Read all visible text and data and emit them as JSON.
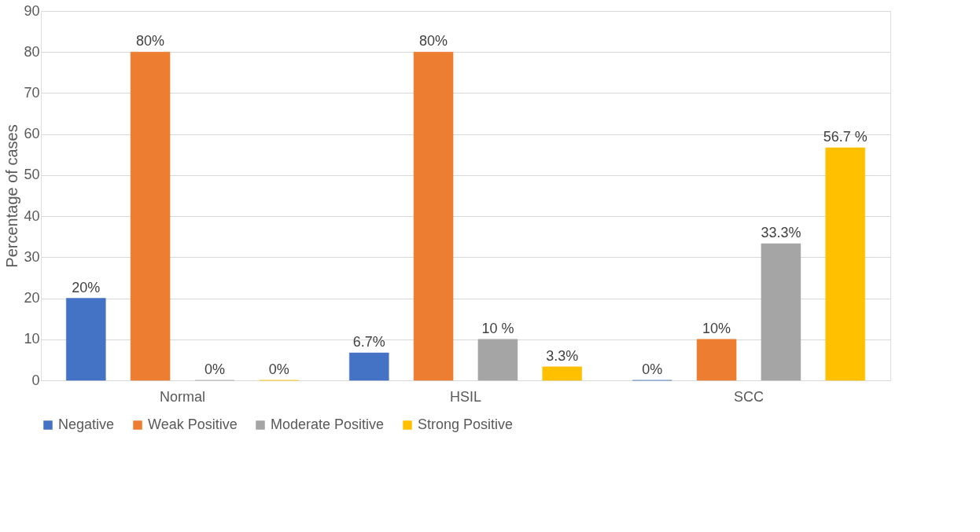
{
  "chart_data": {
    "type": "bar",
    "ylabel": "Percentage of cases",
    "categories": [
      "Normal",
      "HSIL",
      "SCC"
    ],
    "series": [
      {
        "name": "Negative",
        "color": "#4472c4",
        "values": [
          20,
          6.7,
          0
        ],
        "value_labels": [
          "20%",
          "6.7%",
          "0%"
        ]
      },
      {
        "name": "Weak Positive",
        "color": "#ed7d31",
        "values": [
          80,
          80,
          10
        ],
        "value_labels": [
          "80%",
          "80%",
          "10%"
        ]
      },
      {
        "name": "Moderate Positive",
        "color": "#a5a5a5",
        "values": [
          0,
          10,
          33.3
        ],
        "value_labels": [
          "0%",
          "10 %",
          "33.3%"
        ]
      },
      {
        "name": "Strong Positive",
        "color": "#ffc000",
        "values": [
          0,
          3.3,
          56.7
        ],
        "value_labels": [
          "0%",
          "3.3%",
          "56.7 %"
        ]
      }
    ],
    "ylim": [
      0,
      90
    ],
    "yticks": [
      0,
      10,
      20,
      30,
      40,
      50,
      60,
      70,
      80,
      90
    ],
    "grid": "y",
    "legend": "bottom"
  }
}
